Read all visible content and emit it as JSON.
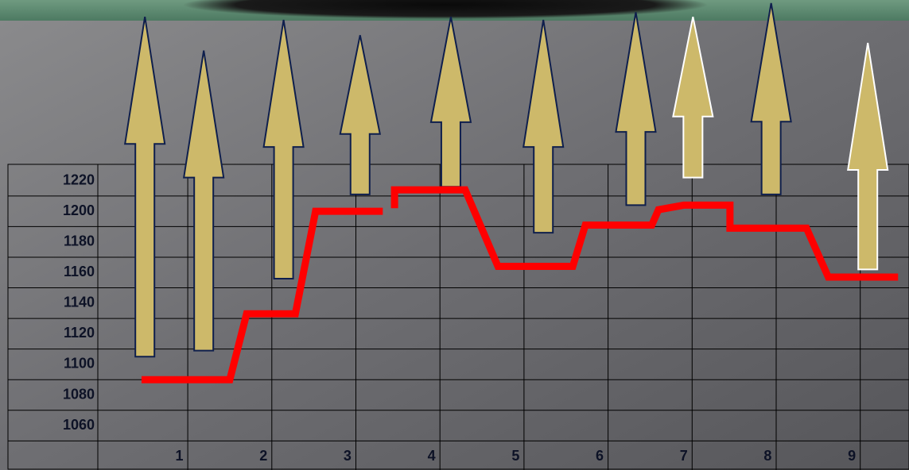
{
  "chart_data": {
    "type": "line",
    "x": [
      0.55,
      1.6,
      1.8,
      2.38,
      2.62,
      3.42,
      null,
      3.56,
      3.56,
      4.4,
      4.79,
      5.68,
      5.83,
      6.62,
      6.7,
      7.0,
      7.55,
      7.55,
      8.46,
      8.72,
      9.55
    ],
    "series": [
      {
        "color": "#ff0000",
        "values": [
          1090,
          1090,
          1133,
          1133,
          1200,
          1200,
          null,
          1202,
          1214,
          1214,
          1164,
          1164,
          1191,
          1191,
          1201,
          1204,
          1204,
          1189,
          1189,
          1157,
          1157
        ]
      }
    ],
    "arrows": {
      "x": [
        0.59,
        1.29,
        2.24,
        3.15,
        4.23,
        5.33,
        6.43,
        7.11,
        8.04,
        9.19
      ],
      "base": [
        1105,
        1109,
        1156,
        1211,
        1216,
        1186,
        1204,
        1222,
        1211,
        1162
      ],
      "tip": [
        1327,
        1305,
        1325,
        1315,
        1327,
        1325,
        1330,
        1327,
        1336,
        1310
      ],
      "fill": "#cdb96a",
      "outline": [
        "#0f1f4d",
        "#0f1f4d",
        "#0f1f4d",
        "#0f1f4d",
        "#0f1f4d",
        "#0f1f4d",
        "#0f1f4d",
        "#ffffff",
        "#0f1f4d",
        "#ffffff"
      ]
    },
    "xlim": [
      0.03,
      9.68
    ],
    "xticks": [
      1,
      2,
      3,
      4,
      5,
      6,
      7,
      8,
      9
    ],
    "ylim": [
      1031,
      1338
    ],
    "yticks": [
      1060,
      1080,
      1100,
      1120,
      1140,
      1160,
      1180,
      1200,
      1220
    ]
  }
}
